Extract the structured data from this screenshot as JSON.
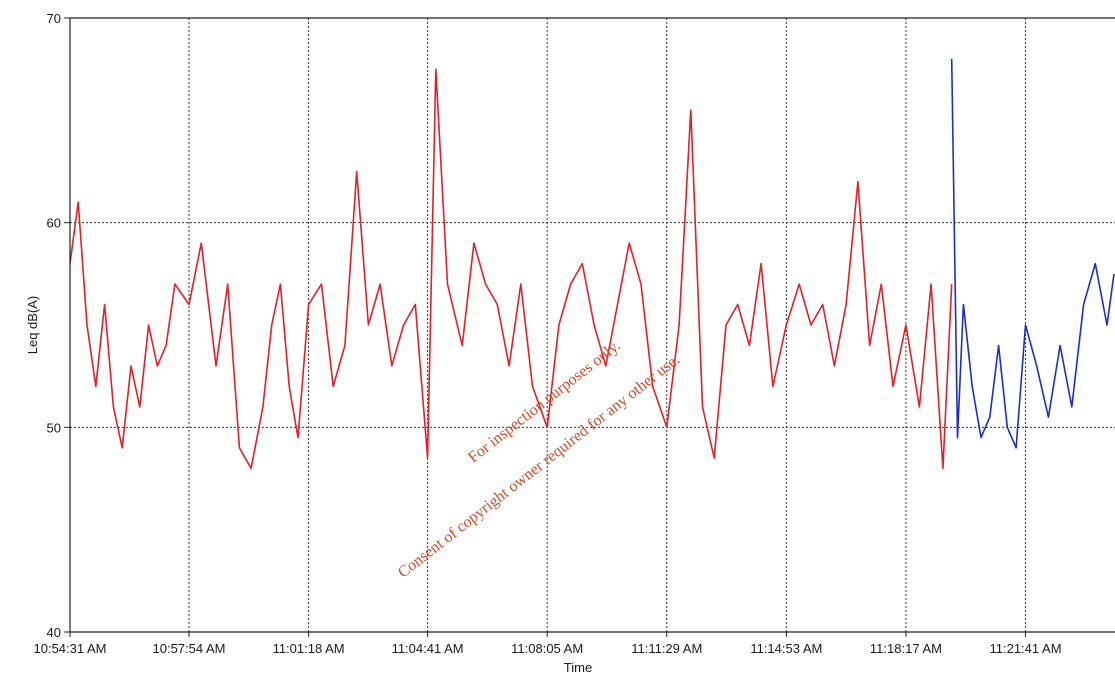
{
  "chart_data": {
    "type": "line",
    "xlabel": "Time",
    "ylabel": "Leq dB(A)",
    "ylim": [
      40,
      70
    ],
    "yticks": [
      40,
      50,
      60,
      70
    ],
    "x_tick_labels": [
      "10:54:31 AM",
      "10:57:54 AM",
      "11:01:18 AM",
      "11:04:41 AM",
      "11:08:05 AM",
      "11:11:29 AM",
      "11:14:53 AM",
      "11:18:17 AM",
      "11:21:41 AM"
    ],
    "xlim": [
      "10:54:31 AM",
      "11:24:30 AM"
    ],
    "grid": {
      "vertical": "dotted",
      "horizontal": "dotted at 50 and 60"
    },
    "series": [
      {
        "color": "#e0202a",
        "x": [
          "10:54:31 AM",
          "10:54:45 AM",
          "10:55:00 AM",
          "10:55:15 AM",
          "10:55:30 AM",
          "10:55:45 AM",
          "10:56:00 AM",
          "10:56:15 AM",
          "10:56:30 AM",
          "10:56:45 AM",
          "10:57:00 AM",
          "10:57:15 AM",
          "10:57:30 AM",
          "10:57:54 AM",
          "10:58:15 AM",
          "10:58:40 AM",
          "10:59:00 AM",
          "10:59:20 AM",
          "10:59:40 AM",
          "11:00:00 AM",
          "11:00:15 AM",
          "11:00:30 AM",
          "11:00:45 AM",
          "11:01:00 AM",
          "11:01:18 AM",
          "11:01:40 AM",
          "11:02:00 AM",
          "11:02:20 AM",
          "11:02:40 AM",
          "11:03:00 AM",
          "11:03:20 AM",
          "11:03:40 AM",
          "11:04:00 AM",
          "11:04:20 AM",
          "11:04:41 AM",
          "11:04:55 AM",
          "11:05:15 AM",
          "11:05:40 AM",
          "11:06:00 AM",
          "11:06:20 AM",
          "11:06:40 AM",
          "11:07:00 AM",
          "11:07:20 AM",
          "11:07:40 AM",
          "11:08:05 AM",
          "11:08:25 AM",
          "11:08:45 AM",
          "11:09:05 AM",
          "11:09:25 AM",
          "11:09:45 AM",
          "11:10:05 AM",
          "11:10:25 AM",
          "11:10:45 AM",
          "11:11:05 AM",
          "11:11:29 AM",
          "11:11:50 AM",
          "11:12:10 AM",
          "11:12:30 AM",
          "11:12:50 AM",
          "11:13:10 AM",
          "11:13:30 AM",
          "11:13:50 AM",
          "11:14:10 AM",
          "11:14:30 AM",
          "11:14:53 AM",
          "11:15:15 AM",
          "11:15:35 AM",
          "11:15:55 AM",
          "11:16:15 AM",
          "11:16:35 AM",
          "11:16:55 AM",
          "11:17:15 AM",
          "11:17:35 AM",
          "11:17:55 AM",
          "11:18:17 AM",
          "11:18:40 AM",
          "11:19:00 AM",
          "11:19:20 AM",
          "11:19:35 AM"
        ],
        "y": [
          58,
          61,
          55,
          52,
          56,
          51,
          49,
          53,
          51,
          55,
          53,
          54,
          57,
          56,
          59,
          53,
          57,
          49,
          48,
          51,
          55,
          57,
          52,
          49.5,
          56,
          57,
          52,
          54,
          62.5,
          55,
          57,
          53,
          55,
          56,
          48.5,
          67.5,
          57,
          54,
          59,
          57,
          56,
          53,
          57,
          52,
          50,
          55,
          57,
          58,
          55,
          53,
          56,
          59,
          57,
          52,
          50,
          55,
          65.5,
          51,
          48.5,
          55,
          56,
          54,
          58,
          52,
          55,
          57,
          55,
          56,
          53,
          56,
          62,
          54,
          57,
          52,
          55,
          51,
          57,
          48,
          57
        ]
      },
      {
        "color": "#1c2fc4",
        "x": [
          "11:19:35 AM",
          "11:19:45 AM",
          "11:19:55 AM",
          "11:20:10 AM",
          "11:20:25 AM",
          "11:20:40 AM",
          "11:20:55 AM",
          "11:21:10 AM",
          "11:21:25 AM",
          "11:21:41 AM",
          "11:22:00 AM",
          "11:22:20 AM",
          "11:22:40 AM",
          "11:23:00 AM",
          "11:23:20 AM",
          "11:23:40 AM",
          "11:24:00 AM",
          "11:24:30 AM"
        ],
        "y": [
          68,
          49.5,
          56,
          52,
          49.5,
          50.5,
          54,
          50,
          49,
          55,
          53,
          50.5,
          54,
          51,
          56,
          58,
          55,
          57.5
        ]
      }
    ]
  },
  "watermark": {
    "line1": "For inspection purposes only.",
    "line2": "Consent of copyright owner required for any other use."
  }
}
